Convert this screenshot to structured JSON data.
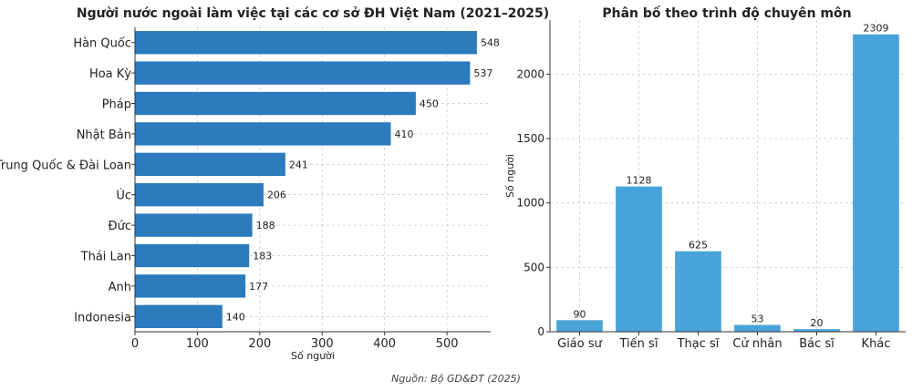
{
  "chart_data": [
    {
      "type": "bar",
      "orientation": "horizontal",
      "title": "Người nước ngoài làm việc tại các cơ sở ĐH Việt Nam (2021–2025)",
      "categories": [
        "Hàn Quốc",
        "Hoa Kỳ",
        "Pháp",
        "Nhật Bản",
        "Trung Quốc & Đài Loan",
        "Úc",
        "Đức",
        "Thái Lan",
        "Anh",
        "Indonesia"
      ],
      "values": [
        548,
        537,
        450,
        410,
        241,
        206,
        188,
        183,
        177,
        140
      ],
      "value_labels": [
        "548",
        "537",
        "450",
        "410",
        "241",
        "206",
        "188",
        "183",
        "177",
        "140"
      ],
      "xlabel": "Số người",
      "ylabel": "",
      "xlim": [
        0,
        570
      ],
      "xticks": [
        0,
        100,
        200,
        300,
        400,
        500
      ],
      "xtick_labels": [
        "0",
        "100",
        "200",
        "300",
        "400",
        "500"
      ],
      "grid": true,
      "color": "#2b7bbd"
    },
    {
      "type": "bar",
      "orientation": "vertical",
      "title": "Phân bố theo trình độ chuyên môn",
      "categories": [
        "Giáo sư",
        "Tiến sĩ",
        "Thạc sĩ",
        "Cử nhân",
        "Bác sĩ",
        "Khác"
      ],
      "values": [
        90,
        1128,
        625,
        53,
        20,
        2309
      ],
      "value_labels": [
        "90",
        "1128",
        "625",
        "53",
        "20",
        "2309"
      ],
      "xlabel": "",
      "ylabel": "Số người",
      "ylim": [
        0,
        2420
      ],
      "yticks": [
        0,
        500,
        1000,
        1500,
        2000
      ],
      "ytick_labels": [
        "0",
        "500",
        "1000",
        "1500",
        "2000"
      ],
      "grid": true,
      "color": "#4aa3d8"
    }
  ],
  "source_note": "Nguồn: Bộ GD&ĐT (2025)"
}
